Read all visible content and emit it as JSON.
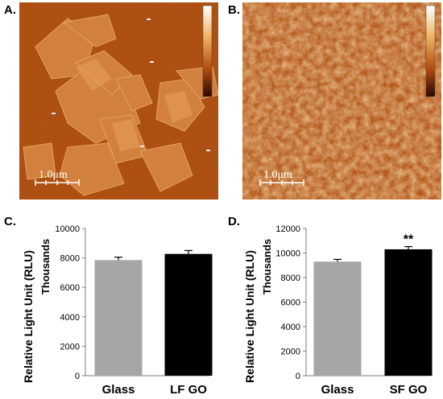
{
  "panels": {
    "A": {
      "letter": "A.",
      "scale_label": "1.0μm"
    },
    "B": {
      "letter": "B.",
      "scale_label": "1.0μm"
    },
    "C": {
      "letter": "C."
    },
    "D": {
      "letter": "D."
    }
  },
  "colors": {
    "afm_dark": "#5a1a00",
    "afm_mid": "#b5541a",
    "afm_light": "#e8a050",
    "afm_highlight": "#fff0c8",
    "bar_glass": "#a6a6a6",
    "bar_go": "#000000"
  },
  "chart_data": [
    {
      "type": "bar",
      "panel": "C",
      "categories": [
        "Glass",
        "LF GO"
      ],
      "values": [
        7850,
        8270
      ],
      "errors": [
        200,
        230
      ],
      "colors": [
        "#a6a6a6",
        "#000000"
      ],
      "ylabel": "Relative Light Unit (RLU)",
      "yunit": "Thousands",
      "ylim": [
        0,
        10000
      ],
      "yticks": [
        "0",
        "2000",
        "4000",
        "6000",
        "8000",
        "10000"
      ],
      "annotations": []
    },
    {
      "type": "bar",
      "panel": "D",
      "categories": [
        "Glass",
        "SF GO"
      ],
      "values": [
        9300,
        10300
      ],
      "errors": [
        180,
        220
      ],
      "colors": [
        "#a6a6a6",
        "#000000"
      ],
      "ylabel": "Relative Light Unit (RLU)",
      "yunit": "Thousands",
      "ylim": [
        0,
        12000
      ],
      "yticks": [
        "0",
        "2000",
        "4000",
        "6000",
        "8000",
        "10000",
        "12000"
      ],
      "annotations": [
        "",
        "**"
      ]
    }
  ]
}
